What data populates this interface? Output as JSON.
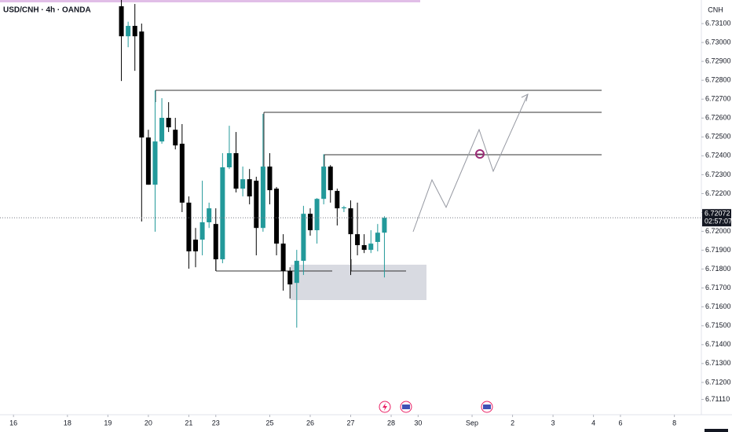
{
  "chart_data": {
    "type": "candlestick",
    "title": "USD/CNH · 4h · OANDA",
    "currency": "CNH",
    "countdown": "02:57:07",
    "up_color": "#22999a",
    "down_color": "#000000",
    "grid": false,
    "xlim": [
      -2,
      102
    ],
    "ylim": [
      6.71029,
      6.73225
    ],
    "xticks": [
      {
        "value": 0,
        "label": "16"
      },
      {
        "value": 8,
        "label": "18"
      },
      {
        "value": 14,
        "label": "19"
      },
      {
        "value": 20,
        "label": "20"
      },
      {
        "value": 26,
        "label": "21"
      },
      {
        "value": 30,
        "label": "23"
      },
      {
        "value": 38,
        "label": "25"
      },
      {
        "value": 44,
        "label": "26"
      },
      {
        "value": 50,
        "label": "27"
      },
      {
        "value": 56,
        "label": "28"
      },
      {
        "value": 60,
        "label": "30"
      },
      {
        "value": 68,
        "label": "Sep"
      },
      {
        "value": 74,
        "label": "2"
      },
      {
        "value": 80,
        "label": "3"
      },
      {
        "value": 86,
        "label": "4"
      },
      {
        "value": 90,
        "label": "6"
      },
      {
        "value": 98,
        "label": "8"
      }
    ],
    "yticks": [
      {
        "value": 6.731,
        "label": "6.73100"
      },
      {
        "value": 6.73,
        "label": "6.73000"
      },
      {
        "value": 6.729,
        "label": "6.72900"
      },
      {
        "value": 6.728,
        "label": "6.72800"
      },
      {
        "value": 6.727,
        "label": "6.72700"
      },
      {
        "value": 6.726,
        "label": "6.72600"
      },
      {
        "value": 6.725,
        "label": "6.72500"
      },
      {
        "value": 6.724,
        "label": "6.72400"
      },
      {
        "value": 6.723,
        "label": "6.72300"
      },
      {
        "value": 6.722,
        "label": "6.72200"
      },
      {
        "value": 6.721,
        "label": "6.72100"
      },
      {
        "value": 6.72,
        "label": "6.72000"
      },
      {
        "value": 6.719,
        "label": "6.71900"
      },
      {
        "value": 6.718,
        "label": "6.71800"
      },
      {
        "value": 6.717,
        "label": "6.71700"
      },
      {
        "value": 6.716,
        "label": "6.71600"
      },
      {
        "value": 6.715,
        "label": "6.71500"
      },
      {
        "value": 6.714,
        "label": "6.71400"
      },
      {
        "value": 6.713,
        "label": "6.71300"
      },
      {
        "value": 6.712,
        "label": "6.71200"
      },
      {
        "value": 6.7111,
        "label": "6.71110"
      }
    ],
    "x": [
      16,
      17,
      18,
      19,
      20,
      21,
      22,
      23,
      24,
      25,
      26,
      27,
      28,
      29,
      30,
      31,
      32,
      33,
      34,
      35,
      36,
      37,
      38,
      39,
      40,
      41,
      42,
      43,
      44,
      45,
      46,
      47,
      48,
      49,
      50,
      51,
      52,
      53,
      54,
      55
    ],
    "open": [
      6.73192,
      6.73033,
      6.73088,
      6.73058,
      6.72497,
      6.72247,
      6.72476,
      6.72601,
      6.72538,
      6.72464,
      6.72152,
      6.71956,
      6.71956,
      6.72048,
      6.72039,
      6.71852,
      6.72339,
      6.72414,
      6.72226,
      6.72276,
      6.72268,
      6.72018,
      6.72343,
      6.72226,
      6.71935,
      6.7179,
      6.71727,
      6.71844,
      6.72093,
      6.72006,
      6.72172,
      6.72343,
      6.72214,
      6.72122,
      6.72122,
      6.71985,
      6.71927,
      6.71902,
      6.71944,
      6.71993
    ],
    "high": [
      6.73266,
      6.7311,
      6.73204,
      6.731,
      6.72538,
      6.72746,
      6.72705,
      6.72684,
      6.72601,
      6.72568,
      6.72185,
      6.72018,
      6.72268,
      6.72152,
      6.72122,
      6.72414,
      6.72559,
      6.72526,
      6.72343,
      6.7233,
      6.72289,
      6.72622,
      6.72414,
      6.72235,
      6.71985,
      6.7181,
      6.71902,
      6.72135,
      6.72122,
      6.72176,
      6.72409,
      6.72351,
      6.72226,
      6.72135,
      6.72164,
      6.72152,
      6.71985,
      6.72006,
      6.72039,
      6.7208
    ],
    "low": [
      6.72796,
      6.72975,
      6.7285,
      6.72052,
      6.72247,
      6.71998,
      6.72464,
      6.72526,
      6.72434,
      6.72102,
      6.71802,
      6.7181,
      6.71873,
      6.72018,
      6.7179,
      6.71831,
      6.7233,
      6.72206,
      6.72185,
      6.72143,
      6.71873,
      6.71998,
      6.72143,
      6.71873,
      6.71686,
      6.71644,
      6.7149,
      6.71769,
      6.71977,
      6.71935,
      6.72143,
      6.72152,
      6.72031,
      6.72102,
      6.71769,
      6.71873,
      6.71885,
      6.71885,
      6.71894,
      6.71756
    ],
    "close": [
      6.73033,
      6.73088,
      6.73033,
      6.72497,
      6.72247,
      6.72476,
      6.72601,
      6.72551,
      6.72455,
      6.72152,
      6.71894,
      6.71894,
      6.72048,
      6.72122,
      6.71852,
      6.72339,
      6.72414,
      6.72226,
      6.72276,
      6.72185,
      6.72018,
      6.72343,
      6.72218,
      6.71935,
      6.7179,
      6.71719,
      6.71844,
      6.72093,
      6.72006,
      6.72172,
      6.72343,
      6.72218,
      6.72122,
      6.72127,
      6.71985,
      6.71927,
      6.71902,
      6.71935,
      6.71993,
      6.72072
    ]
  }
}
